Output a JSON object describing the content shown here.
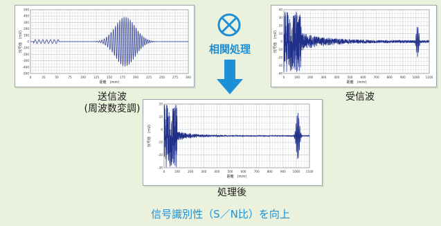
{
  "panels": {
    "sent": {
      "yticks": [
        "500",
        "400",
        "300",
        "200",
        "100",
        "0",
        "-100",
        "-200",
        "-300",
        "-400",
        "-500"
      ],
      "xticks": [
        "0",
        "25",
        "50",
        "75",
        "100",
        "125",
        "150",
        "175",
        "200",
        "225",
        "250",
        "275",
        "300"
      ],
      "ylabel": "信号値　(mV)",
      "xlabel": "距離　(mm)"
    },
    "received": {
      "yticks": [
        "40",
        "30",
        "20",
        "10",
        "0",
        "-10",
        "-20",
        "-30",
        "-40"
      ],
      "xticks": [
        "0",
        "100",
        "200",
        "300",
        "400",
        "500",
        "600",
        "700",
        "800",
        "900",
        "1000",
        "1100"
      ],
      "ylabel": "信号値　(mV)",
      "xlabel": "距離　(mm)"
    },
    "processed": {
      "yticks": [
        "20",
        "10",
        "0",
        "-10",
        "-20",
        "-30"
      ],
      "xticks": [
        "0",
        "100",
        "200",
        "300",
        "400",
        "500",
        "600",
        "700",
        "800",
        "900",
        "1000",
        "1100"
      ],
      "ylabel": "信号値　(mV)",
      "xlabel": "距離　(mm)"
    }
  },
  "captions": {
    "sent_line1": "送信波",
    "sent_line2": "(周波数変調)",
    "received": "受信波",
    "processed": "処理後"
  },
  "operation": {
    "symbol": "⊗",
    "label": "相関処理"
  },
  "footer": "信号識別性（S／N比）を向上",
  "colors": {
    "accent": "#1d8fd6",
    "waveform": "#1f2f8a",
    "grid": "#c9ced3"
  }
}
